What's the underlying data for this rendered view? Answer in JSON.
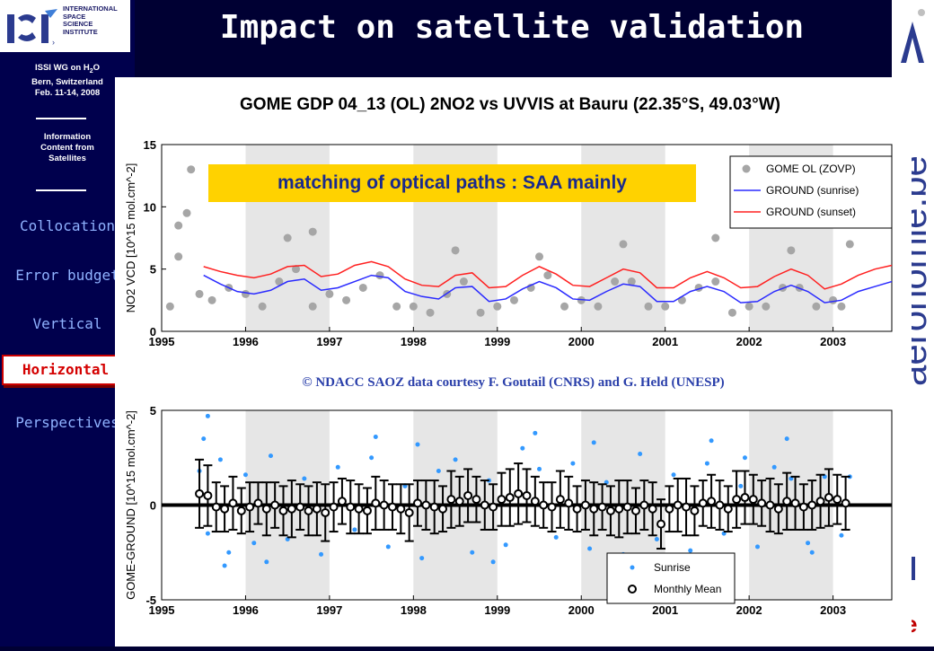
{
  "sidebar": {
    "logo_org": "INTERNATIONAL SPACE SCIENCE INSTITUTE",
    "logo_mark": "ISSI",
    "meeting_line1": "ISSI WG on H",
    "meeting_sub": "2",
    "meeting_line1b": "O",
    "meeting_line2": "Bern, Switzerland",
    "meeting_line3": "Feb. 11-14, 2008",
    "topic_line1": "Information",
    "topic_line2": "Content from",
    "topic_line3": "Satellites",
    "nav": [
      {
        "label": "Collocation"
      },
      {
        "label": "Error budget"
      },
      {
        "label": "Vertical"
      },
      {
        "label": "Horizontal",
        "active": true
      },
      {
        "label": "Perspectives"
      }
    ]
  },
  "slide_title": "Impact on satellite validation",
  "annotation": "matching of optical paths : SAA mainly",
  "credit": "© NDACC SAOZ data courtesy F. Goutail (CNRS) and G. Held (UNESP)",
  "right_logo_text": "aeronomie.be",
  "chart_data": [
    {
      "type": "line",
      "title": "GOME GDP 04_13 (OL) 2NO2 vs UVVIS at Bauru (22.35°S,  49.03°W)",
      "xlabel": "",
      "ylabel": "NO2 VCD [10^15 mol.cm^-2]",
      "x_ticks": [
        "1995",
        "1996",
        "1997",
        "1998",
        "1999",
        "2000",
        "2001",
        "2002",
        "2003"
      ],
      "xlim": [
        1995,
        2003.7
      ],
      "ylim": [
        0,
        15
      ],
      "y_ticks": [
        0,
        5,
        10,
        15
      ],
      "legend_position": "top-right",
      "colors": {
        "gome": "#a6a6a6",
        "sunrise": "#2a2aff",
        "sunset": "#ff2020"
      },
      "series": [
        {
          "name": "GOME OL (ZOVP)",
          "style": "points",
          "x": [
            1995.1,
            1995.2,
            1995.3,
            1995.45,
            1995.6,
            1995.8,
            1996.0,
            1996.2,
            1996.4,
            1996.6,
            1996.8,
            1997.0,
            1997.2,
            1997.4,
            1997.6,
            1997.8,
            1998.0,
            1998.2,
            1998.4,
            1998.6,
            1998.8,
            1999.0,
            1999.2,
            1999.4,
            1999.6,
            1999.8,
            2000.0,
            2000.2,
            2000.4,
            2000.6,
            2000.8,
            2001.0,
            2001.2,
            2001.4,
            2001.6,
            2001.8,
            2002.0,
            2002.2,
            2002.4,
            2002.6,
            2002.8,
            2003.0,
            2003.1,
            1995.2,
            1996.5,
            1998.5,
            2000.5,
            2001.6,
            1995.35,
            1996.8,
            1999.5,
            2002.5,
            2003.2
          ],
          "y": [
            2.0,
            6.0,
            9.5,
            3.0,
            2.5,
            3.5,
            3.0,
            2.0,
            4.0,
            5.0,
            2.0,
            3.0,
            2.5,
            3.5,
            4.5,
            2.0,
            2.0,
            1.5,
            3.0,
            4.0,
            1.5,
            2.0,
            2.5,
            3.5,
            4.5,
            2.0,
            2.5,
            2.0,
            4.0,
            4.0,
            2.0,
            2.0,
            2.5,
            3.5,
            4.0,
            1.5,
            2.0,
            2.0,
            3.5,
            3.5,
            2.0,
            2.5,
            2.0,
            8.5,
            7.5,
            6.5,
            7.0,
            7.5,
            13.0,
            8.0,
            6.0,
            6.5,
            7.0
          ]
        },
        {
          "name": "GROUND (sunrise)",
          "style": "line",
          "x": [
            1995.5,
            1995.7,
            1995.9,
            1996.1,
            1996.3,
            1996.5,
            1996.7,
            1996.9,
            1997.1,
            1997.3,
            1997.5,
            1997.7,
            1997.9,
            1998.1,
            1998.3,
            1998.5,
            1998.7,
            1998.9,
            1999.1,
            1999.3,
            1999.5,
            1999.7,
            1999.9,
            2000.1,
            2000.3,
            2000.5,
            2000.7,
            2000.9,
            2001.1,
            2001.3,
            2001.5,
            2001.7,
            2001.9,
            2002.1,
            2002.3,
            2002.5,
            2002.7,
            2002.9,
            2003.1,
            2003.3,
            2003.5,
            2003.7
          ],
          "y": [
            4.5,
            3.8,
            3.2,
            3.0,
            3.3,
            4.0,
            4.2,
            3.3,
            3.5,
            4.0,
            4.5,
            4.3,
            3.2,
            2.8,
            2.6,
            3.5,
            3.6,
            2.4,
            2.6,
            3.4,
            4.0,
            3.5,
            2.6,
            2.5,
            3.2,
            3.8,
            3.6,
            2.4,
            2.4,
            3.2,
            3.6,
            3.2,
            2.3,
            2.4,
            3.2,
            3.7,
            3.2,
            2.3,
            2.5,
            3.2,
            3.6,
            4.0
          ]
        },
        {
          "name": "GROUND (sunset)",
          "style": "line",
          "x": [
            1995.5,
            1995.7,
            1995.9,
            1996.1,
            1996.3,
            1996.5,
            1996.7,
            1996.9,
            1997.1,
            1997.3,
            1997.5,
            1997.7,
            1997.9,
            1998.1,
            1998.3,
            1998.5,
            1998.7,
            1998.9,
            1999.1,
            1999.3,
            1999.5,
            1999.7,
            1999.9,
            2000.1,
            2000.3,
            2000.5,
            2000.7,
            2000.9,
            2001.1,
            2001.3,
            2001.5,
            2001.7,
            2001.9,
            2002.1,
            2002.3,
            2002.5,
            2002.7,
            2002.9,
            2003.1,
            2003.3,
            2003.5,
            2003.7
          ],
          "y": [
            5.2,
            4.8,
            4.5,
            4.3,
            4.6,
            5.2,
            5.3,
            4.4,
            4.6,
            5.3,
            5.6,
            5.2,
            4.2,
            3.7,
            3.6,
            4.5,
            4.7,
            3.5,
            3.6,
            4.5,
            5.2,
            4.6,
            3.7,
            3.6,
            4.3,
            5.0,
            4.7,
            3.5,
            3.5,
            4.3,
            4.8,
            4.3,
            3.5,
            3.6,
            4.4,
            5.0,
            4.5,
            3.4,
            3.8,
            4.5,
            5.0,
            5.3
          ]
        }
      ]
    },
    {
      "type": "scatter",
      "title": "",
      "xlabel": "",
      "ylabel": "GOME-GROUND [10^15 mol.cm^-2]",
      "x_ticks": [
        "1995",
        "1996",
        "1997",
        "1998",
        "1999",
        "2000",
        "2001",
        "2002",
        "2003"
      ],
      "xlim": [
        1995,
        2003.7
      ],
      "ylim": [
        -5,
        5
      ],
      "y_ticks": [
        -5,
        0,
        5
      ],
      "legend_position": "bottom-right",
      "colors": {
        "sunrise": "#3399ff",
        "mean": "#000000"
      },
      "series": [
        {
          "name": "Sunrise",
          "style": "points",
          "x": [
            1995.45,
            1995.5,
            1995.55,
            1995.7,
            1995.8,
            1996.0,
            1996.1,
            1996.3,
            1996.5,
            1996.7,
            1996.9,
            1997.1,
            1997.3,
            1997.5,
            1997.7,
            1997.9,
            1998.1,
            1998.3,
            1998.5,
            1998.7,
            1998.9,
            1999.1,
            1999.3,
            1999.5,
            1999.7,
            1999.9,
            2000.1,
            2000.3,
            2000.5,
            2000.7,
            2000.9,
            2001.1,
            2001.3,
            2001.5,
            2001.7,
            2001.9,
            2002.1,
            2002.3,
            2002.5,
            2002.7,
            2002.9,
            2003.1,
            1995.55,
            1996.25,
            1998.05,
            1999.45,
            2000.75,
            2001.55,
            2002.45,
            2003.2,
            1995.75,
            1997.55,
            1998.95,
            2000.15,
            2001.95,
            2002.75
          ],
          "y": [
            1.8,
            3.5,
            -1.5,
            2.4,
            -2.5,
            1.6,
            -2.0,
            2.6,
            -1.8,
            1.4,
            -2.6,
            2.0,
            -1.3,
            2.5,
            -2.2,
            1.0,
            -2.8,
            1.8,
            2.4,
            -2.5,
            1.3,
            -2.1,
            3.0,
            1.9,
            -1.7,
            2.2,
            -2.3,
            1.2,
            -2.6,
            2.7,
            -1.8,
            1.6,
            -2.4,
            2.2,
            -1.5,
            1.0,
            -2.2,
            2.0,
            1.4,
            -2.0,
            1.5,
            -1.6,
            4.7,
            -3.0,
            3.2,
            3.8,
            -3.0,
            3.4,
            3.5,
            1.5,
            -3.2,
            3.6,
            -3.0,
            3.3,
            2.5,
            -2.5
          ]
        },
        {
          "name": "Monthly Mean",
          "style": "errorbars",
          "x": [
            1995.45,
            1995.55,
            1995.65,
            1995.75,
            1995.85,
            1995.95,
            1996.05,
            1996.15,
            1996.25,
            1996.35,
            1996.45,
            1996.55,
            1996.65,
            1996.75,
            1996.85,
            1996.95,
            1997.05,
            1997.15,
            1997.25,
            1997.35,
            1997.45,
            1997.55,
            1997.65,
            1997.75,
            1997.85,
            1997.95,
            1998.05,
            1998.15,
            1998.25,
            1998.35,
            1998.45,
            1998.55,
            1998.65,
            1998.75,
            1998.85,
            1998.95,
            1999.05,
            1999.15,
            1999.25,
            1999.35,
            1999.45,
            1999.55,
            1999.65,
            1999.75,
            1999.85,
            1999.95,
            2000.05,
            2000.15,
            2000.25,
            2000.35,
            2000.45,
            2000.55,
            2000.65,
            2000.75,
            2000.85,
            2000.95,
            2001.05,
            2001.15,
            2001.25,
            2001.35,
            2001.45,
            2001.55,
            2001.65,
            2001.75,
            2001.85,
            2001.95,
            2002.05,
            2002.15,
            2002.25,
            2002.35,
            2002.45,
            2002.55,
            2002.65,
            2002.75,
            2002.85,
            2002.95,
            2003.05,
            2003.15
          ],
          "y": [
            0.6,
            0.5,
            -0.1,
            -0.2,
            0.1,
            -0.3,
            -0.1,
            0.1,
            -0.2,
            0.0,
            -0.3,
            -0.2,
            -0.1,
            -0.3,
            -0.2,
            -0.4,
            -0.1,
            0.2,
            -0.1,
            -0.2,
            -0.3,
            0.1,
            0.0,
            -0.1,
            -0.2,
            -0.4,
            0.1,
            0.0,
            -0.1,
            -0.2,
            0.3,
            0.2,
            0.5,
            0.3,
            0.0,
            -0.1,
            0.3,
            0.4,
            0.6,
            0.5,
            0.2,
            0.0,
            -0.1,
            0.3,
            0.1,
            -0.2,
            0.0,
            -0.2,
            -0.1,
            -0.3,
            -0.2,
            -0.1,
            -0.3,
            0.0,
            -0.2,
            -1.0,
            -0.2,
            0.0,
            -0.1,
            -0.3,
            0.1,
            0.2,
            0.0,
            -0.2,
            0.3,
            0.4,
            0.3,
            0.1,
            0.0,
            -0.2,
            0.2,
            0.1,
            -0.1,
            0.0,
            0.2,
            0.4,
            0.3,
            0.1
          ],
          "err": [
            1.8,
            1.6,
            1.3,
            1.2,
            1.4,
            1.2,
            1.3,
            1.1,
            1.4,
            1.2,
            1.3,
            1.5,
            1.2,
            1.3,
            1.4,
            1.5,
            1.3,
            1.2,
            1.4,
            1.3,
            1.2,
            1.4,
            1.3,
            1.2,
            1.3,
            1.5,
            1.2,
            1.3,
            1.4,
            1.2,
            1.5,
            1.3,
            1.4,
            1.2,
            1.3,
            1.2,
            1.4,
            1.5,
            1.6,
            1.4,
            1.3,
            1.2,
            1.3,
            1.5,
            1.4,
            1.2,
            1.3,
            1.4,
            1.2,
            1.3,
            1.5,
            1.4,
            1.2,
            1.3,
            1.4,
            1.3,
            1.2,
            1.4,
            1.5,
            1.3,
            1.2,
            1.4,
            1.3,
            1.2,
            1.5,
            1.4,
            1.3,
            1.2,
            1.4,
            1.3,
            1.5,
            1.4,
            1.2,
            1.3,
            1.4,
            1.5,
            1.3,
            1.4
          ]
        }
      ]
    }
  ]
}
